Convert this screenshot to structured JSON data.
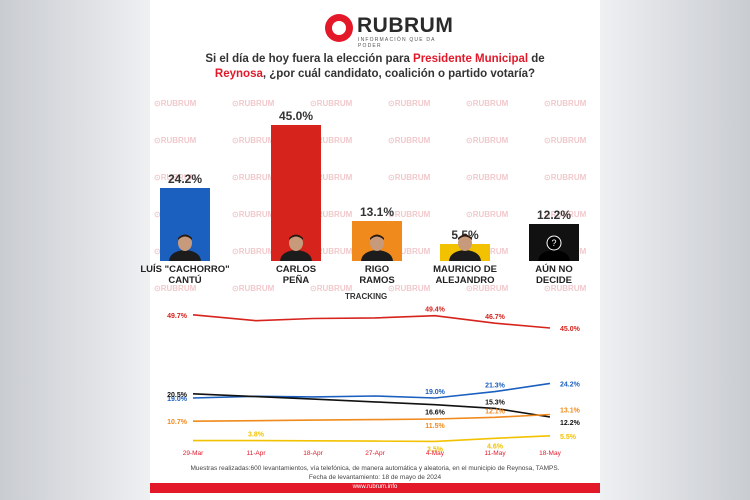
{
  "brand": {
    "name": "RUBRUM",
    "tagline": "INFORMACIÓN QUE DA PODER"
  },
  "question": {
    "part1": "Si el día de hoy fuera la elección para ",
    "highlight1": "Presidente Municipal",
    "part2": " de",
    "highlight2": "Reynosa",
    "part3": ", ¿por cuál candidato, coalición o partido votaría?"
  },
  "colors": {
    "brand_red": "#e3192a",
    "blue": "#1b5fbf",
    "red": "#d6231c",
    "orange": "#f08a1c",
    "yellow": "#f2c200",
    "black": "#111111"
  },
  "chart_data": [
    {
      "type": "bar",
      "categories": [
        "LUÍS \"CACHORRO\" CANTÚ",
        "CARLOS PEÑA",
        "RIGO RAMOS",
        "MAURICIO DE ALEJANDRO",
        "AÚN NO DECIDE"
      ],
      "values": [
        24.2,
        45.0,
        13.1,
        5.5,
        12.2
      ],
      "value_labels": [
        "24.2%",
        "45.0%",
        "13.1%",
        "5.5%",
        "12.2%"
      ],
      "bar_colors": [
        "#1b5fbf",
        "#d6231c",
        "#f08a1c",
        "#f2c200",
        "#111111"
      ],
      "label_lines": [
        [
          "LUÍS \"CACHORRO\"",
          "CANTÚ"
        ],
        [
          "CARLOS",
          "PEÑA"
        ],
        [
          "RIGO",
          "RAMOS"
        ],
        [
          "MAURICIO DE",
          "ALEJANDRO"
        ],
        [
          "AÚN NO",
          "DECIDE"
        ]
      ]
    },
    {
      "type": "line",
      "title": "TRACKING",
      "x": [
        "29-Mar",
        "11-Apr",
        "18-Apr",
        "27-Apr",
        "4-May",
        "11-May",
        "18-May"
      ],
      "series": [
        {
          "name": "CARLOS PEÑA",
          "color": "#d6231c",
          "values": [
            49.7,
            47.6,
            48.4,
            48.6,
            49.4,
            46.7,
            45.0
          ],
          "labels": {
            "0": "49.7%",
            "4": "49.4%",
            "5": "46.7%",
            "6": "45.0%"
          }
        },
        {
          "name": "LUÍS \"CACHORRO\" CANTÚ",
          "color": "#1b5fbf",
          "values": [
            19.0,
            19.6,
            19.4,
            19.7,
            19.0,
            21.3,
            24.2
          ],
          "labels": {
            "0": "19.0%",
            "4": "19.0%",
            "5": "21.3%",
            "6": "24.2%"
          }
        },
        {
          "name": "AÚN NO DECIDE",
          "color": "#111111",
          "values": [
            20.5,
            19.5,
            18.6,
            17.6,
            16.6,
            15.3,
            12.2
          ],
          "labels": {
            "0": "20.5%",
            "4": "16.6%",
            "5": "15.3%",
            "6": "12.2%"
          }
        },
        {
          "name": "RIGO RAMOS",
          "color": "#f08a1c",
          "values": [
            10.7,
            10.9,
            11.1,
            11.3,
            11.5,
            12.1,
            13.1
          ],
          "labels": {
            "0": "10.7%",
            "4": "11.5%",
            "5": "12.1%",
            "6": "13.1%"
          }
        },
        {
          "name": "MAURICIO DE ALEJANDRO",
          "color": "#f2c200",
          "values": [
            3.8,
            3.8,
            3.7,
            3.6,
            3.5,
            4.6,
            5.5
          ],
          "labels": {
            "1": "3.8%",
            "4": "3.5%",
            "5": "4.6%",
            "6": "5.5%"
          }
        }
      ]
    }
  ],
  "footer": {
    "line1": "Muestras realizadas:600 levantamientos, vía telefónica, de manera automática y aleatoria, en el municipio de Reynosa, TAMPS.",
    "line2": "Fecha de levantamiento: 18 de mayo de 2024",
    "url": "www.rubrum.info"
  }
}
